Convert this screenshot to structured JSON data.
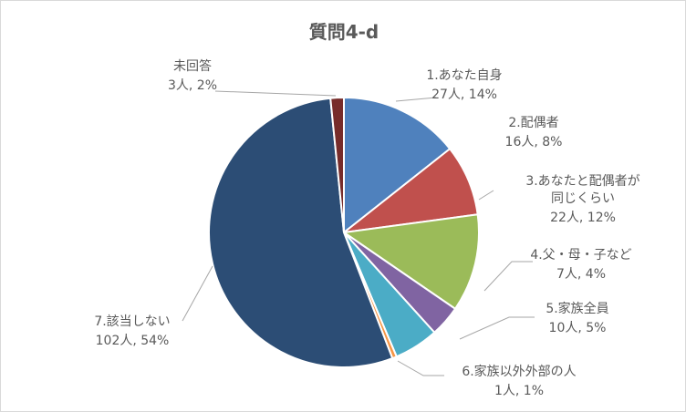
{
  "chart_data": {
    "type": "pie",
    "title": "質問4-d",
    "slices": [
      {
        "label": "1.あなた自身",
        "count_label": "27人, 14%",
        "count": 27,
        "percent": 14,
        "color": "#4f81bd"
      },
      {
        "label": "2.配偶者",
        "count_label": "16人, 8%",
        "count": 16,
        "percent": 8,
        "color": "#c0504d"
      },
      {
        "label": "3.あなたと配偶者が同じくらい",
        "label_lines": [
          "3.あなたと配偶者が",
          "同じくらい"
        ],
        "count_label": "22人, 12%",
        "count": 22,
        "percent": 12,
        "color": "#9bbb59"
      },
      {
        "label": "4.父・母・子など",
        "count_label": "7人, 4%",
        "count": 7,
        "percent": 4,
        "color": "#8064a2"
      },
      {
        "label": "5.家族全員",
        "count_label": "10人, 5%",
        "count": 10,
        "percent": 5,
        "color": "#4bacc6"
      },
      {
        "label": "6.家族以外外部の人",
        "count_label": "1人, 1%",
        "count": 1,
        "percent": 1,
        "color": "#f79646"
      },
      {
        "label": "7.該当しない",
        "count_label": "102人, 54%",
        "count": 102,
        "percent": 54,
        "color": "#2c4d75"
      },
      {
        "label": "未回答",
        "count_label": "3人, 2%",
        "count": 3,
        "percent": 2,
        "color": "#772c2a"
      }
    ]
  }
}
